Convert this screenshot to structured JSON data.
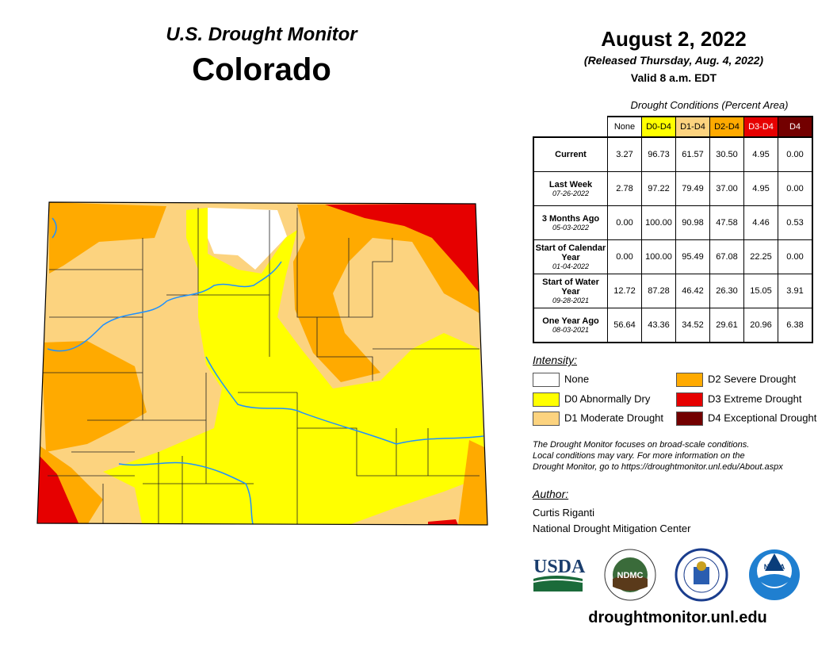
{
  "header": {
    "title_line1": "U.S. Drought Monitor",
    "title_line2": "Colorado",
    "date": "August 2, 2022",
    "released": "(Released Thursday, Aug. 4, 2022)",
    "valid": "Valid 8 a.m. EDT"
  },
  "table": {
    "caption": "Drought Conditions (Percent Area)",
    "columns": [
      {
        "label": "None",
        "bg": "#FFFFFF",
        "fg": "#000000"
      },
      {
        "label": "D0-D4",
        "bg": "#FFFF00",
        "fg": "#000000"
      },
      {
        "label": "D1-D4",
        "bg": "#FCD37F",
        "fg": "#000000"
      },
      {
        "label": "D2-D4",
        "bg": "#FFAA00",
        "fg": "#000000"
      },
      {
        "label": "D3-D4",
        "bg": "#E60000",
        "fg": "#FFFFFF"
      },
      {
        "label": "D4",
        "bg": "#730000",
        "fg": "#FFFFFF"
      }
    ],
    "rows": [
      {
        "label": "Current",
        "date": "",
        "values": [
          "3.27",
          "96.73",
          "61.57",
          "30.50",
          "4.95",
          "0.00"
        ]
      },
      {
        "label": "Last Week",
        "date": "07-26-2022",
        "values": [
          "2.78",
          "97.22",
          "79.49",
          "37.00",
          "4.95",
          "0.00"
        ]
      },
      {
        "label": "3 Months Ago",
        "date": "05-03-2022",
        "values": [
          "0.00",
          "100.00",
          "90.98",
          "47.58",
          "4.46",
          "0.53"
        ]
      },
      {
        "label": "Start of Calendar Year",
        "date": "01-04-2022",
        "values": [
          "0.00",
          "100.00",
          "95.49",
          "67.08",
          "22.25",
          "0.00"
        ]
      },
      {
        "label": "Start of Water Year",
        "date": "09-28-2021",
        "values": [
          "12.72",
          "87.28",
          "46.42",
          "26.30",
          "15.05",
          "3.91"
        ]
      },
      {
        "label": "One Year Ago",
        "date": "08-03-2021",
        "values": [
          "56.64",
          "43.36",
          "34.52",
          "29.61",
          "20.96",
          "6.38"
        ]
      }
    ]
  },
  "legend": {
    "title": "Intensity:",
    "items": [
      {
        "label": "None",
        "color": "#FFFFFF"
      },
      {
        "label": "D0 Abnormally Dry",
        "color": "#FFFF00"
      },
      {
        "label": "D1 Moderate Drought",
        "color": "#FCD37F"
      },
      {
        "label": "D2 Severe Drought",
        "color": "#FFAA00"
      },
      {
        "label": "D3 Extreme Drought",
        "color": "#E60000"
      },
      {
        "label": "D4 Exceptional Drought",
        "color": "#730000"
      }
    ]
  },
  "note": [
    "The Drought Monitor focuses on broad-scale conditions.",
    "Local conditions may vary. For more information on the",
    "Drought Monitor, go to https://droughtmonitor.unl.edu/About.aspx"
  ],
  "author": {
    "title": "Author:",
    "name": "Curtis Riganti",
    "org": "National Drought Mitigation Center"
  },
  "logos": [
    "USDA",
    "NDMC",
    "NOAA"
  ],
  "footer_url": "droughtmonitor.unl.edu"
}
